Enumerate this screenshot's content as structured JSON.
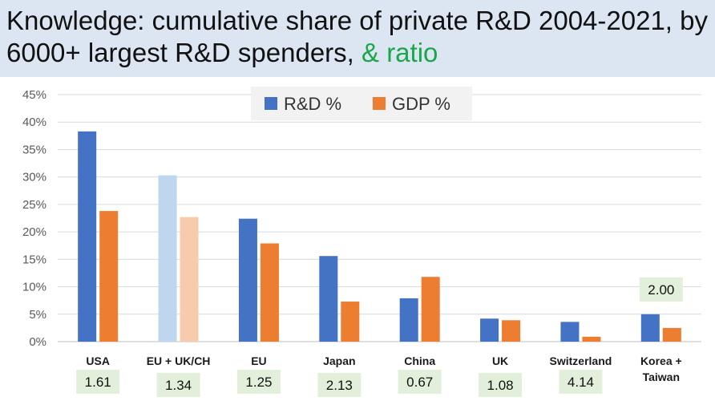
{
  "title": {
    "main": "Knowledge: cumulative share of private R&D 2004-2021, by 6000+ largest R&D spenders, ",
    "accent": "& ratio",
    "accent_color": "#1aa64a",
    "background": "#dce6f2"
  },
  "chart_data": {
    "type": "bar",
    "categories": [
      [
        "USA"
      ],
      [
        "EU + UK/CH"
      ],
      [
        "EU"
      ],
      [
        "Japan"
      ],
      [
        "China"
      ],
      [
        "UK"
      ],
      [
        "Switzerland"
      ],
      [
        "Korea +",
        "Taiwan"
      ]
    ],
    "series": [
      {
        "name": "R&D %",
        "color": "#4472c4",
        "faded_color": "#bdd7ee",
        "values": [
          38.3,
          30.3,
          22.4,
          15.6,
          7.9,
          4.2,
          3.6,
          5.0
        ]
      },
      {
        "name": "GDP %",
        "color": "#ed7d31",
        "faded_color": "#f8cbad",
        "values": [
          23.8,
          22.7,
          17.9,
          7.3,
          11.8,
          3.9,
          0.9,
          2.5
        ]
      }
    ],
    "faded_category_index": 1,
    "ratios": [
      "1.61",
      "1.34",
      "1.25",
      "2.13",
      "0.67",
      "1.08",
      "4.14",
      "2.00"
    ],
    "ratio_box_color": "#e2efda",
    "ylim": [
      0,
      45
    ],
    "y_ticks": [
      0,
      5,
      10,
      15,
      20,
      25,
      30,
      35,
      40,
      45
    ],
    "y_tick_format": "percent",
    "grid": true,
    "legend_position": "top-center"
  }
}
